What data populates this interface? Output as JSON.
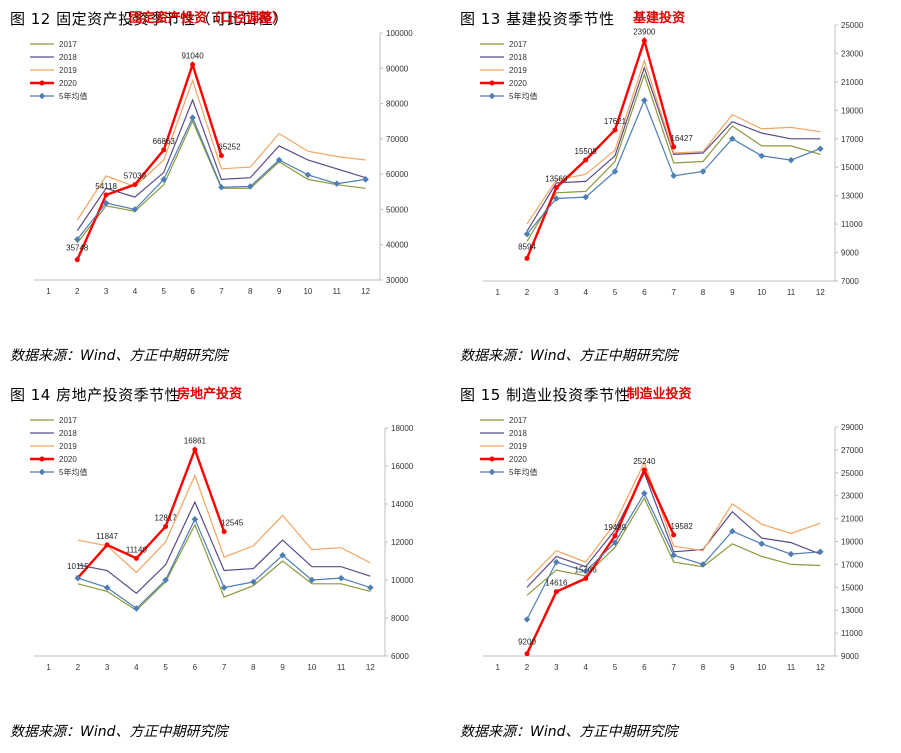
{
  "source_text": "数据来源：Wind、方正中期研究院",
  "colors": {
    "y2017": "#8a9a3c",
    "y2018": "#5b4a8a",
    "y2019": "#f4a460",
    "y2020": "#ff0000",
    "avg": "#4f7eb4",
    "axis": "#bfbfbf",
    "grid": "#d9d9d9"
  },
  "chart_data": [
    {
      "type": "line",
      "fig_title": "图  12    固定资产投资季节性（可比口径）",
      "title": "固定资产投资（口径调整）",
      "x": [
        1,
        2,
        3,
        4,
        5,
        6,
        7,
        8,
        9,
        10,
        11,
        12
      ],
      "ylim": [
        30000,
        100000
      ],
      "yticks": [
        30000,
        40000,
        50000,
        60000,
        70000,
        80000,
        90000,
        100000
      ],
      "legend": [
        "2017",
        "2018",
        "2019",
        "2020",
        "5年均值"
      ],
      "series": [
        {
          "name": "2017",
          "values": [
            null,
            40500,
            51000,
            49500,
            57000,
            75000,
            56000,
            56000,
            63500,
            58500,
            57000,
            56000
          ]
        },
        {
          "name": "2018",
          "values": [
            null,
            44000,
            56000,
            53500,
            60500,
            81000,
            58500,
            59000,
            68000,
            64000,
            61500,
            59000
          ]
        },
        {
          "name": "2019",
          "values": [
            null,
            47000,
            59500,
            56500,
            64000,
            86500,
            61500,
            62000,
            71500,
            66500,
            65000,
            64000
          ]
        },
        {
          "name": "2020",
          "values": [
            null,
            35748,
            54118,
            57039,
            66863,
            91040,
            65252,
            null,
            null,
            null,
            null,
            null
          ]
        },
        {
          "name": "5年均值",
          "values": [
            null,
            41500,
            51800,
            50000,
            58500,
            76000,
            56300,
            56500,
            64000,
            59800,
            57300,
            58500
          ]
        }
      ],
      "data_labels": [
        "35748",
        "54118",
        "57039",
        "66863",
        "91040",
        "65252"
      ]
    },
    {
      "type": "line",
      "fig_title": "图  13    基建投资季节性",
      "title": "基建投资",
      "x": [
        1,
        2,
        3,
        4,
        5,
        6,
        7,
        8,
        9,
        10,
        11,
        12
      ],
      "ylim": [
        7000,
        25000
      ],
      "yticks": [
        7000,
        9000,
        11000,
        13000,
        15000,
        17000,
        19000,
        21000,
        23000,
        25000
      ],
      "legend": [
        "2017",
        "2018",
        "2019",
        "2020",
        "5年均值"
      ],
      "series": [
        {
          "name": "2017",
          "values": [
            null,
            9800,
            13200,
            13300,
            15400,
            21500,
            15300,
            15400,
            17900,
            16500,
            16500,
            15900
          ]
        },
        {
          "name": "2018",
          "values": [
            null,
            10500,
            13900,
            14000,
            15800,
            22000,
            15900,
            16000,
            18200,
            17400,
            17000,
            17000
          ]
        },
        {
          "name": "2019",
          "values": [
            null,
            11000,
            14100,
            14500,
            16200,
            22500,
            16000,
            16100,
            18700,
            17700,
            17800,
            17500
          ]
        },
        {
          "name": "2020",
          "values": [
            null,
            8594,
            13569,
            15508,
            17621,
            23900,
            16427,
            null,
            null,
            null,
            null,
            null
          ]
        },
        {
          "name": "5年均值",
          "values": [
            null,
            10300,
            12800,
            12900,
            14700,
            19700,
            14400,
            14700,
            17000,
            15800,
            15500,
            16300
          ]
        }
      ],
      "data_labels": [
        "8594",
        "13569",
        "15508",
        "17621",
        "23900",
        "16427"
      ]
    },
    {
      "type": "line",
      "fig_title": "图  14    房地产投资季节性",
      "title": "房地产投资",
      "x": [
        1,
        2,
        3,
        4,
        5,
        6,
        7,
        8,
        9,
        10,
        11,
        12
      ],
      "ylim": [
        6000,
        18000
      ],
      "yticks": [
        6000,
        8000,
        10000,
        12000,
        14000,
        16000,
        18000
      ],
      "legend": [
        "2017",
        "2018",
        "2019",
        "2020",
        "5年均值"
      ],
      "series": [
        {
          "name": "2017",
          "values": [
            null,
            9800,
            9400,
            8400,
            9900,
            12900,
            9100,
            9700,
            11000,
            9800,
            9800,
            9400
          ]
        },
        {
          "name": "2018",
          "values": [
            null,
            10800,
            10500,
            9300,
            10800,
            14100,
            10500,
            10600,
            12100,
            10700,
            10700,
            10200
          ]
        },
        {
          "name": "2019",
          "values": [
            null,
            12100,
            11800,
            10400,
            12000,
            15500,
            11200,
            11800,
            13400,
            11600,
            11700,
            10900
          ]
        },
        {
          "name": "2020",
          "values": [
            null,
            10115,
            11847,
            11140,
            12817,
            16861,
            12545,
            null,
            null,
            null,
            null,
            null
          ]
        },
        {
          "name": "5年均值",
          "values": [
            null,
            10100,
            9600,
            8500,
            10000,
            13200,
            9600,
            9900,
            11300,
            10000,
            10100,
            9600
          ]
        }
      ],
      "data_labels": [
        "10115",
        "11847",
        "11140",
        "12817",
        "16861",
        "12545"
      ]
    },
    {
      "type": "line",
      "fig_title": "图  15    制造业投资季节性",
      "title": "制造业投资",
      "x": [
        1,
        2,
        3,
        4,
        5,
        6,
        7,
        8,
        9,
        10,
        11,
        12
      ],
      "ylim": [
        9000,
        29000
      ],
      "yticks": [
        9000,
        11000,
        13000,
        15000,
        17000,
        19000,
        21000,
        23000,
        25000,
        27000,
        29000
      ],
      "legend": [
        "2017",
        "2018",
        "2019",
        "2020",
        "5年均值"
      ],
      "series": [
        {
          "name": "2017",
          "values": [
            null,
            14300,
            16500,
            16000,
            18500,
            22800,
            17200,
            16800,
            18800,
            17700,
            17000,
            16900
          ]
        },
        {
          "name": "2018",
          "values": [
            null,
            15000,
            17700,
            16800,
            20000,
            25000,
            18100,
            18300,
            21600,
            19300,
            18900,
            17900
          ]
        },
        {
          "name": "2019",
          "values": [
            null,
            15600,
            18200,
            17200,
            20600,
            25900,
            18600,
            18200,
            22300,
            20500,
            19700,
            20600
          ]
        },
        {
          "name": "2020",
          "values": [
            null,
            9200,
            14616,
            15766,
            19489,
            25240,
            19582,
            null,
            null,
            null,
            null,
            null
          ]
        },
        {
          "name": "5年均值",
          "values": [
            null,
            12200,
            17200,
            16400,
            18900,
            23200,
            17800,
            17000,
            19900,
            18800,
            17900,
            18100
          ]
        }
      ],
      "data_labels": [
        "9200",
        "14616",
        "15766",
        "19489",
        "25240",
        "19582"
      ]
    }
  ]
}
